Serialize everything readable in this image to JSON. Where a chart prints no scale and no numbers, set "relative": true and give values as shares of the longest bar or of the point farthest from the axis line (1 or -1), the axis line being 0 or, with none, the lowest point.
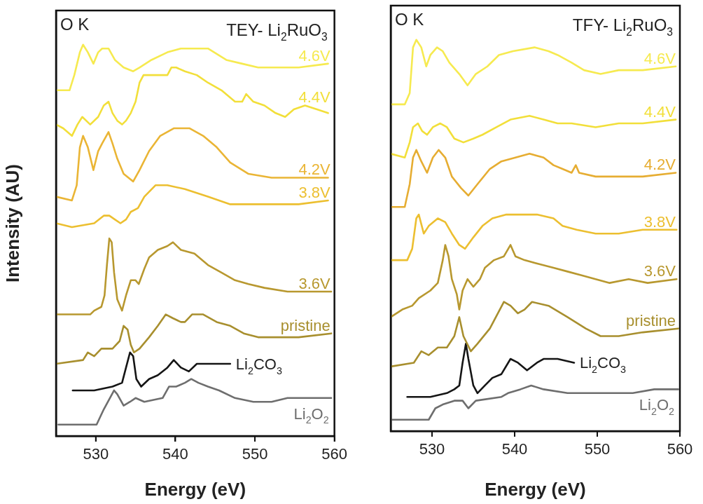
{
  "chart_data": [
    {
      "type": "line",
      "title": "TEY- Li$_{2}$RuO$_{3}$",
      "xlabel": "Energy (eV)",
      "ylabel": "Intensity (AU)",
      "annotations": [
        "O K"
      ],
      "relative": true,
      "legend": false,
      "grid": false,
      "tick_labels": "x",
      "marker": "none",
      "line_style": "solid",
      "xlim": [
        525,
        560
      ],
      "xticks": [
        530,
        540,
        550,
        560
      ],
      "series": [
        {
          "name": "4.6V",
          "color": "#f6ea50",
          "x": [
            525.0,
            526.7,
            527.3,
            528.0,
            528.4,
            529.0,
            529.7,
            530.3,
            530.8,
            531.6,
            532.4,
            533.5,
            534.7,
            535.5,
            537.0,
            539.0,
            540.7,
            542.4,
            544.1,
            546.4,
            548.4,
            550.4,
            552.6,
            555.5,
            559.2
          ],
          "values": [
            0.88,
            0.88,
            0.92,
            0.98,
            1.0,
            0.98,
            0.95,
            0.98,
            0.99,
            0.99,
            0.96,
            0.94,
            0.93,
            0.94,
            0.96,
            0.98,
            0.99,
            0.99,
            0.99,
            0.96,
            0.95,
            0.94,
            0.94,
            0.94,
            0.95
          ]
        },
        {
          "name": "4.4V",
          "color": "#f2df3a",
          "x": [
            525.0,
            525.9,
            527.0,
            527.7,
            528.3,
            529.3,
            530.3,
            531.0,
            531.6,
            532.1,
            532.7,
            533.3,
            533.8,
            534.4,
            535.0,
            535.5,
            536.0,
            537.0,
            538.4,
            539.0,
            539.5,
            540.1,
            541.2,
            542.7,
            544.1,
            545.8,
            547.5,
            548.4,
            548.9,
            549.8,
            551.2,
            552.6,
            553.8,
            554.9,
            556.3,
            557.8,
            559.2
          ],
          "values": [
            0.79,
            0.78,
            0.76,
            0.79,
            0.81,
            0.79,
            0.81,
            0.84,
            0.85,
            0.82,
            0.8,
            0.79,
            0.8,
            0.82,
            0.85,
            0.9,
            0.92,
            0.92,
            0.92,
            0.92,
            0.94,
            0.94,
            0.93,
            0.92,
            0.9,
            0.88,
            0.85,
            0.85,
            0.87,
            0.85,
            0.84,
            0.82,
            0.81,
            0.83,
            0.84,
            0.83,
            0.82
          ]
        },
        {
          "name": "4.2V",
          "color": "#eab535",
          "x": [
            525.0,
            527.0,
            527.6,
            528.0,
            528.4,
            529.0,
            529.7,
            530.3,
            530.8,
            531.6,
            532.1,
            532.7,
            533.5,
            534.7,
            535.5,
            536.7,
            538.1,
            539.8,
            541.8,
            543.5,
            545.2,
            546.9,
            549.2,
            552.1,
            555.5,
            559.2
          ],
          "values": [
            0.6,
            0.59,
            0.63,
            0.73,
            0.76,
            0.73,
            0.67,
            0.72,
            0.74,
            0.77,
            0.74,
            0.7,
            0.66,
            0.64,
            0.67,
            0.72,
            0.76,
            0.78,
            0.78,
            0.76,
            0.73,
            0.69,
            0.66,
            0.65,
            0.65,
            0.65
          ]
        },
        {
          "name": "3.8V",
          "color": "#ecbf30",
          "x": [
            525.0,
            527.0,
            529.8,
            531.0,
            531.7,
            532.4,
            533.1,
            533.8,
            534.4,
            535.3,
            536.1,
            537.5,
            539.0,
            541.2,
            544.1,
            546.9,
            549.8,
            552.6,
            555.5,
            559.2
          ],
          "values": [
            0.53,
            0.52,
            0.53,
            0.55,
            0.55,
            0.54,
            0.53,
            0.54,
            0.56,
            0.57,
            0.6,
            0.63,
            0.63,
            0.62,
            0.6,
            0.58,
            0.58,
            0.58,
            0.58,
            0.59
          ]
        },
        {
          "name": "3.6V",
          "color": "#b8982f",
          "x": [
            525.0,
            527.0,
            529.3,
            529.8,
            530.7,
            531.1,
            531.4,
            531.7,
            532.0,
            532.3,
            532.7,
            533.3,
            533.8,
            534.4,
            535.0,
            535.4,
            536.1,
            536.7,
            537.8,
            539.0,
            539.7,
            540.7,
            542.4,
            544.1,
            545.8,
            547.5,
            549.2,
            551.2,
            554.1,
            556.9,
            559.6
          ],
          "values": [
            0.29,
            0.29,
            0.29,
            0.3,
            0.31,
            0.34,
            0.42,
            0.49,
            0.48,
            0.4,
            0.33,
            0.3,
            0.34,
            0.38,
            0.38,
            0.37,
            0.41,
            0.44,
            0.46,
            0.47,
            0.48,
            0.46,
            0.45,
            0.42,
            0.4,
            0.38,
            0.37,
            0.36,
            0.35,
            0.35,
            0.35
          ]
        },
        {
          "name": "pristine",
          "color": "#a88f2e",
          "x": [
            525.0,
            528.4,
            529.0,
            529.8,
            530.7,
            532.1,
            533.0,
            533.5,
            534.0,
            534.4,
            534.8,
            535.5,
            536.7,
            537.8,
            538.8,
            539.7,
            540.7,
            541.2,
            542.1,
            543.5,
            545.2,
            546.9,
            548.6,
            550.4,
            552.6,
            555.5,
            559.6
          ],
          "values": [
            0.16,
            0.17,
            0.19,
            0.18,
            0.2,
            0.2,
            0.22,
            0.26,
            0.25,
            0.21,
            0.19,
            0.2,
            0.23,
            0.26,
            0.29,
            0.28,
            0.27,
            0.27,
            0.29,
            0.29,
            0.27,
            0.26,
            0.24,
            0.23,
            0.23,
            0.23,
            0.24
          ]
        },
        {
          "name": "Li$_{2}$CO$_{3}$",
          "color": "#151515",
          "x": [
            527.1,
            529.8,
            532.1,
            533.3,
            533.8,
            534.3,
            534.7,
            535.1,
            535.7,
            536.7,
            537.8,
            539.0,
            539.8,
            540.7,
            541.7,
            542.7,
            543.5,
            545.2,
            546.9
          ],
          "values": [
            0.09,
            0.09,
            0.1,
            0.11,
            0.15,
            0.19,
            0.18,
            0.12,
            0.1,
            0.12,
            0.13,
            0.15,
            0.17,
            0.15,
            0.14,
            0.16,
            0.16,
            0.16,
            0.16
          ]
        },
        {
          "name": "Li$_{2}$O$_{2}$",
          "color": "#6e6e6e",
          "x": [
            525.3,
            530.1,
            531.0,
            532.3,
            532.7,
            533.5,
            534.3,
            535.0,
            536.1,
            538.4,
            539.2,
            540.1,
            541.2,
            542.0,
            542.9,
            544.1,
            545.5,
            547.5,
            549.8,
            552.1,
            554.1,
            556.1,
            559.6
          ],
          "values": [
            0.0,
            0.0,
            0.04,
            0.09,
            0.08,
            0.05,
            0.06,
            0.07,
            0.06,
            0.07,
            0.1,
            0.1,
            0.11,
            0.12,
            0.11,
            0.1,
            0.09,
            0.07,
            0.06,
            0.06,
            0.07,
            0.07,
            0.07
          ]
        }
      ]
    },
    {
      "type": "line",
      "title": "TFY- Li$_{2}$RuO$_{3}$",
      "xlabel": "Energy (eV)",
      "annotations": [
        "O K"
      ],
      "relative": true,
      "legend": false,
      "grid": false,
      "tick_labels": "x",
      "marker": "none",
      "line_style": "solid",
      "xlim": [
        525,
        560
      ],
      "xticks": [
        530,
        540,
        550,
        560
      ],
      "series": [
        {
          "name": "4.6V",
          "color": "#f6ea50",
          "x": [
            525.0,
            526.7,
            527.3,
            527.7,
            528.1,
            528.7,
            529.3,
            529.8,
            530.6,
            531.3,
            532.1,
            533.3,
            534.3,
            535.3,
            536.7,
            538.1,
            539.8,
            542.4,
            544.1,
            545.2,
            546.9,
            548.4,
            550.4,
            552.6,
            555.5,
            559.5
          ],
          "values": [
            0.83,
            0.83,
            0.86,
            0.98,
            1.0,
            0.98,
            0.93,
            0.96,
            0.98,
            0.97,
            0.94,
            0.91,
            0.88,
            0.91,
            0.93,
            0.96,
            0.97,
            0.98,
            0.97,
            0.96,
            0.94,
            0.92,
            0.91,
            0.92,
            0.92,
            0.93
          ]
        },
        {
          "name": "4.4V",
          "color": "#f2df3a",
          "x": [
            525.0,
            526.7,
            527.3,
            527.7,
            528.3,
            528.8,
            529.4,
            530.1,
            531.0,
            531.8,
            532.7,
            533.8,
            535.0,
            536.1,
            537.8,
            539.5,
            541.8,
            543.5,
            545.2,
            546.9,
            549.8,
            552.6,
            555.5,
            559.5
          ],
          "values": [
            0.7,
            0.69,
            0.73,
            0.77,
            0.78,
            0.76,
            0.75,
            0.77,
            0.78,
            0.77,
            0.74,
            0.73,
            0.74,
            0.75,
            0.77,
            0.79,
            0.8,
            0.79,
            0.78,
            0.78,
            0.77,
            0.78,
            0.78,
            0.79
          ]
        },
        {
          "name": "4.2V",
          "color": "#e6ad32",
          "x": [
            525.0,
            526.7,
            527.3,
            527.7,
            528.1,
            528.7,
            529.4,
            530.1,
            530.8,
            531.6,
            532.4,
            533.5,
            534.4,
            535.5,
            537.0,
            538.4,
            540.1,
            541.8,
            543.5,
            544.7,
            545.8,
            546.9,
            547.4,
            547.8,
            549.8,
            552.6,
            555.5,
            559.5
          ],
          "values": [
            0.56,
            0.56,
            0.62,
            0.69,
            0.71,
            0.68,
            0.65,
            0.69,
            0.71,
            0.69,
            0.64,
            0.61,
            0.59,
            0.62,
            0.66,
            0.68,
            0.69,
            0.7,
            0.69,
            0.67,
            0.66,
            0.65,
            0.67,
            0.65,
            0.64,
            0.64,
            0.64,
            0.65
          ]
        },
        {
          "name": "3.8V",
          "color": "#ecbf30",
          "x": [
            525.0,
            527.0,
            527.6,
            528.1,
            528.4,
            529.0,
            529.6,
            530.7,
            531.6,
            532.4,
            533.3,
            534.0,
            535.0,
            536.1,
            537.3,
            539.0,
            540.7,
            542.7,
            544.7,
            545.8,
            547.5,
            549.8,
            552.6,
            555.5,
            559.6
          ],
          "values": [
            0.42,
            0.42,
            0.45,
            0.53,
            0.54,
            0.49,
            0.51,
            0.53,
            0.52,
            0.49,
            0.46,
            0.45,
            0.48,
            0.51,
            0.53,
            0.54,
            0.54,
            0.54,
            0.53,
            0.51,
            0.5,
            0.49,
            0.49,
            0.5,
            0.5
          ]
        },
        {
          "name": "3.6V",
          "color": "#b8982f",
          "x": [
            525.0,
            526.4,
            527.6,
            528.4,
            529.8,
            530.7,
            531.3,
            531.6,
            532.0,
            532.4,
            533.0,
            533.3,
            533.7,
            534.3,
            535.0,
            535.8,
            536.4,
            537.5,
            538.7,
            539.5,
            540.1,
            541.2,
            542.9,
            544.7,
            546.4,
            548.1,
            549.8,
            551.5,
            553.8,
            556.1,
            559.6
          ],
          "values": [
            0.27,
            0.29,
            0.3,
            0.32,
            0.34,
            0.36,
            0.42,
            0.46,
            0.43,
            0.37,
            0.33,
            0.29,
            0.34,
            0.37,
            0.35,
            0.37,
            0.4,
            0.42,
            0.43,
            0.46,
            0.43,
            0.42,
            0.41,
            0.4,
            0.39,
            0.38,
            0.37,
            0.36,
            0.37,
            0.36,
            0.37
          ]
        },
        {
          "name": "pristine",
          "color": "#a88f2e",
          "x": [
            525.0,
            527.8,
            528.7,
            529.6,
            530.7,
            531.8,
            532.7,
            533.3,
            533.8,
            534.7,
            535.5,
            537.0,
            538.7,
            539.5,
            540.4,
            541.2,
            542.1,
            544.1,
            546.4,
            548.6,
            550.4,
            552.6,
            555.5,
            559.8
          ],
          "values": [
            0.14,
            0.15,
            0.18,
            0.17,
            0.19,
            0.19,
            0.22,
            0.27,
            0.22,
            0.18,
            0.2,
            0.24,
            0.31,
            0.3,
            0.28,
            0.29,
            0.31,
            0.3,
            0.27,
            0.24,
            0.22,
            0.22,
            0.23,
            0.24
          ]
        },
        {
          "name": "Li$_{2}$CO$_{3}$",
          "color": "#151515",
          "x": [
            527.0,
            529.8,
            531.8,
            532.7,
            533.3,
            533.7,
            534.1,
            534.4,
            535.0,
            535.5,
            536.4,
            537.3,
            538.4,
            539.5,
            540.4,
            541.5,
            542.7,
            543.5,
            545.2,
            547.2
          ],
          "values": [
            0.06,
            0.06,
            0.07,
            0.08,
            0.09,
            0.15,
            0.2,
            0.16,
            0.09,
            0.07,
            0.09,
            0.11,
            0.12,
            0.16,
            0.15,
            0.13,
            0.15,
            0.16,
            0.16,
            0.15
          ]
        },
        {
          "name": "Li$_{2}$O$_{2}$",
          "color": "#6e6e6e",
          "x": [
            525.0,
            529.6,
            530.4,
            531.3,
            532.7,
            533.3,
            533.7,
            534.4,
            535.3,
            538.4,
            539.2,
            540.7,
            542.0,
            543.5,
            546.4,
            549.2,
            551.8,
            554.3,
            556.9,
            559.8
          ],
          "values": [
            0.0,
            0.0,
            0.03,
            0.04,
            0.05,
            0.05,
            0.05,
            0.03,
            0.05,
            0.06,
            0.07,
            0.08,
            0.09,
            0.08,
            0.07,
            0.07,
            0.07,
            0.07,
            0.08,
            0.08
          ]
        }
      ]
    }
  ]
}
